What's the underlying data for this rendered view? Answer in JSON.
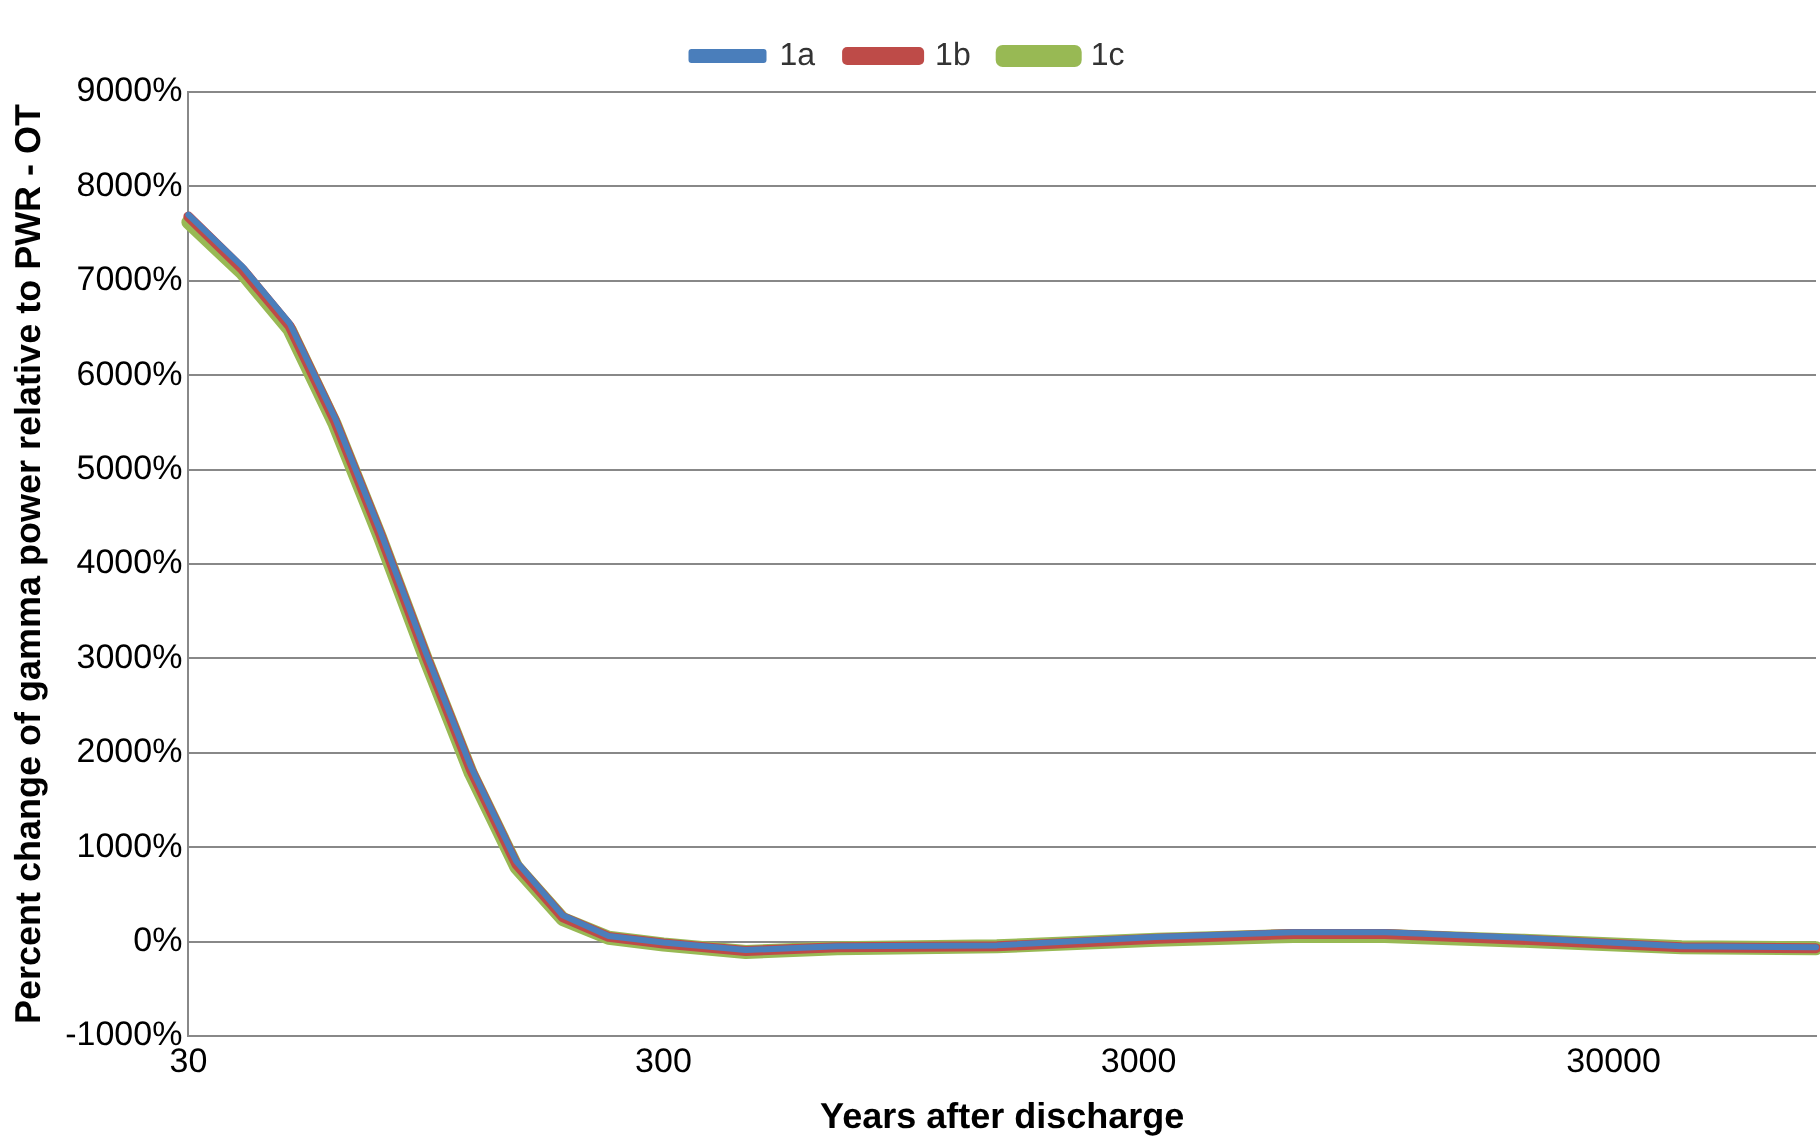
{
  "chart_data": {
    "type": "line",
    "xlabel": "Years after discharge",
    "ylabel": "Percent change of gamma power relative to PWR - OT",
    "log": "x",
    "xlim": [
      30,
      80000
    ],
    "xticks": [
      30,
      300,
      3000,
      30000
    ],
    "ylim": [
      -1000,
      9000
    ],
    "yticks": [
      {
        "value": -1000,
        "label": "-1000%"
      },
      {
        "value": 0,
        "label": "0%"
      },
      {
        "value": 1000,
        "label": "1000%"
      },
      {
        "value": 2000,
        "label": "2000%"
      },
      {
        "value": 3000,
        "label": "3000%"
      },
      {
        "value": 4000,
        "label": "4000%"
      },
      {
        "value": 5000,
        "label": "5000%"
      },
      {
        "value": 6000,
        "label": "6000%"
      },
      {
        "value": 7000,
        "label": "7000%"
      },
      {
        "value": 8000,
        "label": "8000%"
      },
      {
        "value": 9000,
        "label": "9000%"
      }
    ],
    "grid": "y",
    "legend": "top",
    "marker": "none",
    "line_style": "solid",
    "x": [
      30,
      39,
      49,
      61,
      76,
      95,
      118,
      147,
      184,
      230,
      300,
      447,
      696,
      1510,
      3270,
      6360,
      9900,
      19200,
      41700,
      80000
    ],
    "series": [
      {
        "name": "1a",
        "color": "#4a7ebb",
        "values": [
          7700,
          7150,
          6550,
          5550,
          4350,
          3050,
          1850,
          850,
          280,
          60,
          -10,
          -90,
          -50,
          -40,
          50,
          100,
          100,
          40,
          -50,
          -60
        ]
      },
      {
        "name": "1b",
        "color": "#be4b48",
        "values": [
          7680,
          7120,
          6520,
          5520,
          4320,
          3020,
          1820,
          820,
          260,
          50,
          -20,
          -100,
          -60,
          -50,
          30,
          80,
          80,
          20,
          -60,
          -70
        ]
      },
      {
        "name": "1c",
        "color": "#98b954",
        "values": [
          7620,
          7080,
          6480,
          5480,
          4280,
          2980,
          1780,
          790,
          240,
          40,
          -30,
          -110,
          -70,
          -50,
          20,
          60,
          60,
          10,
          -60,
          -70
        ]
      }
    ]
  }
}
